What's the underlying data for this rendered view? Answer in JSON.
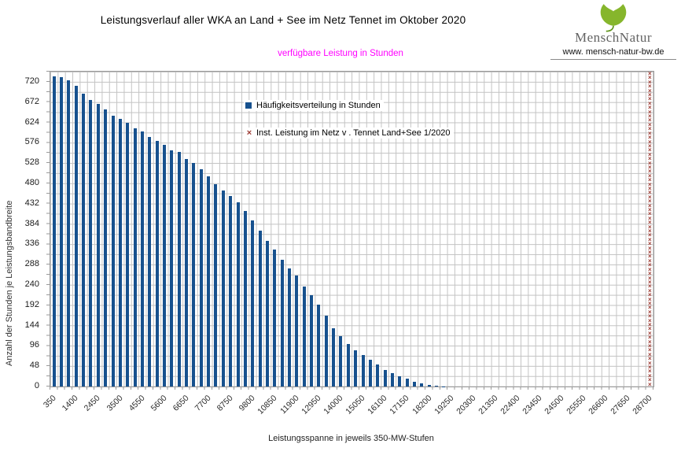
{
  "header": {
    "title": "Leistungsverlauf aller WKA an Land + See im Netz Tennet im Oktober 2020",
    "subtitle": "verfügbare Leistung in Stunden"
  },
  "brand": {
    "name_part1": "Mensch",
    "name_part2": "Natur",
    "url": "www. mensch-natur-bw.de",
    "leaf_color": "#86b62c",
    "leaf_color_dark": "#5e9419"
  },
  "icons": {
    "x_marker": "×"
  },
  "colors": {
    "bar_blue": "#17518e",
    "marker_red": "#9c3a32",
    "subtitle_magenta": "#ff00ff",
    "grid_gray": "#c3c3c3",
    "axis_gray": "#9a9a9a"
  },
  "chart_data": {
    "type": "bar",
    "title": "Leistungsverlauf aller WKA an Land + See im Netz Tennet im Oktober 2020",
    "subtitle": "verfügbare Leistung in Stunden",
    "xlabel": "Leistungsspanne in jeweils 350-MW-Stufen",
    "ylabel": "Anzahl der Stunden je Leistungsbandbreite",
    "bin_width_mw": 350,
    "num_bins": 82,
    "x_first_bin_mw": 350,
    "x_last_bin_mw": 28700,
    "x_tick_every_bins": 3,
    "x_tick_labels": [
      "350",
      "1400",
      "2450",
      "3500",
      "4550",
      "5600",
      "6650",
      "7700",
      "8750",
      "9800",
      "10850",
      "11900",
      "12950",
      "14000",
      "15050",
      "16100",
      "17150",
      "18200",
      "19250",
      "20300",
      "21350",
      "22400",
      "23450",
      "24500",
      "25550",
      "26600",
      "27650",
      "28700"
    ],
    "ylim": [
      0,
      744
    ],
    "y_major_step": 48,
    "y_minor_step": 24,
    "y_tick_labels": [
      "720",
      "672",
      "624",
      "576",
      "528",
      "480",
      "432",
      "384",
      "336",
      "288",
      "240",
      "192",
      "144",
      "96",
      "48",
      "0"
    ],
    "grid": true,
    "legend_position": "inside-top-center",
    "series": [
      {
        "name": "Häufigkeitsverteilung in Stunden",
        "type": "bar",
        "color": "#17518e",
        "values": [
          733,
          731,
          724,
          711,
          692,
          677,
          668,
          655,
          640,
          632,
          623,
          610,
          603,
          590,
          580,
          571,
          558,
          554,
          537,
          528,
          513,
          496,
          479,
          464,
          450,
          435,
          414,
          392,
          369,
          345,
          323,
          300,
          280,
          263,
          237,
          215,
          194,
          168,
          138,
          119,
          101,
          86,
          75,
          64,
          52,
          39,
          32,
          24,
          19,
          11,
          7,
          4,
          2,
          1,
          0,
          0,
          0,
          0,
          0,
          0,
          0,
          0,
          0,
          0,
          0,
          0,
          0,
          0,
          0,
          0,
          0,
          0,
          0,
          0,
          0,
          0,
          0,
          0,
          0,
          0,
          0,
          0
        ]
      },
      {
        "name": "Inst. Leistung im Netz v . Tennet  Land+See 1/2020",
        "type": "marker-column",
        "color": "#9c3a32",
        "bin": 82,
        "x_mw": 28700,
        "spans_full_height": true
      }
    ]
  }
}
